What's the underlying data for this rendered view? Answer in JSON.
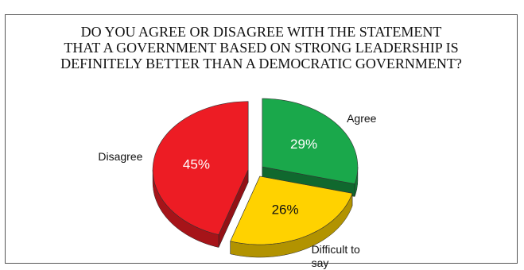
{
  "chart_data": {
    "type": "pie",
    "title": "DO YOU AGREE OR DISAGREE WITH THE STATEMENT\nTHAT A GOVERNMENT BASED ON STRONG LEADERSHIP IS\nDEFINITELY BETTER THAN A DEMOCRATIC GOVERNMENT?",
    "categories": [
      "Agree",
      "Difficult to say",
      "Disagree"
    ],
    "values": [
      29,
      26,
      45
    ],
    "value_labels": [
      "29%",
      "26%",
      "45%"
    ],
    "colors": [
      "#1aa84b",
      "#ffd200",
      "#ed1c24"
    ]
  }
}
